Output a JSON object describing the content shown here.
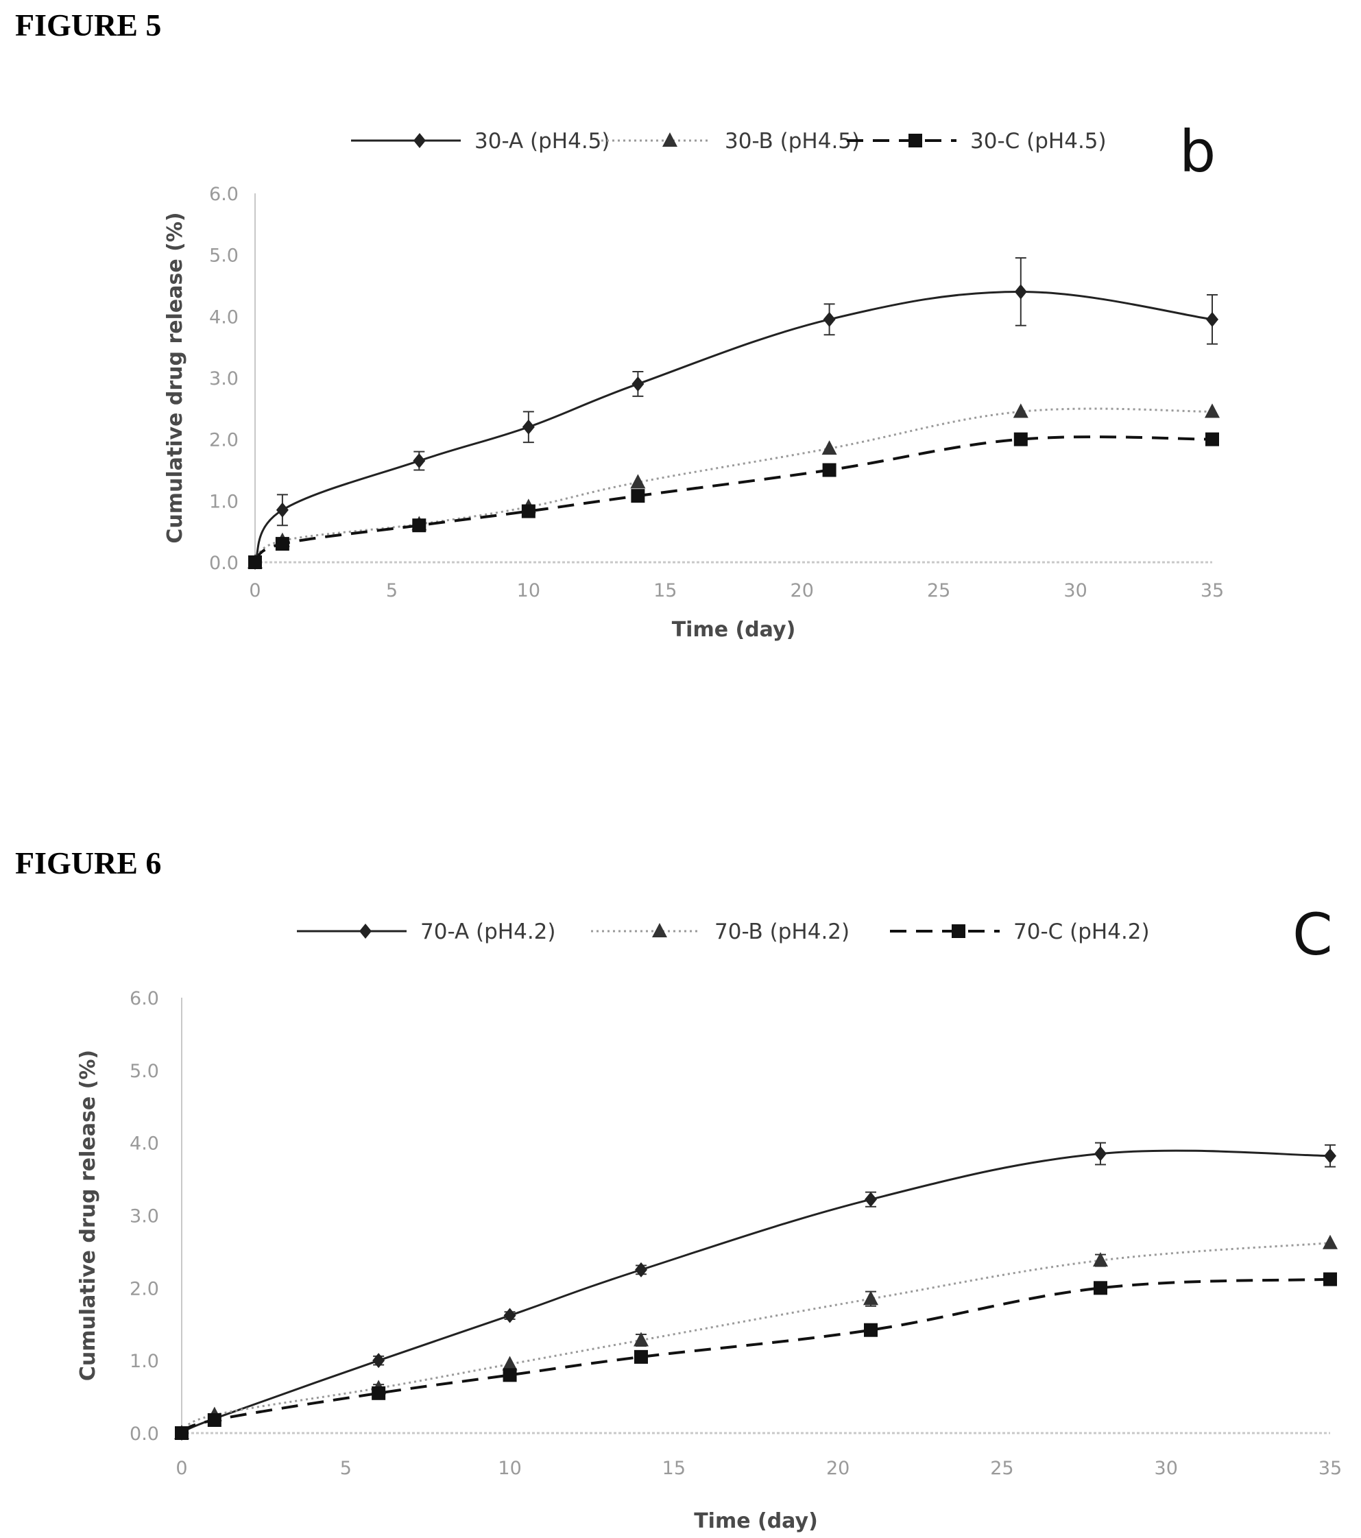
{
  "figures": [
    {
      "heading": "FIGURE 5"
    },
    {
      "heading": "FIGURE 6"
    }
  ],
  "chart_data": [
    {
      "type": "line",
      "panel_label": "b",
      "xlabel": "Time (day)",
      "ylabel": "Cumulative drug release (%)",
      "xlim": [
        0,
        35
      ],
      "ylim": [
        0,
        6
      ],
      "xticks": [
        "0",
        "5",
        "10",
        "15",
        "20",
        "25",
        "30",
        "35"
      ],
      "yticks": [
        "0.0",
        "1.0",
        "2.0",
        "3.0",
        "4.0",
        "5.0",
        "6.0"
      ],
      "legend_position": "top",
      "grid": false,
      "x": [
        0,
        1,
        6,
        10,
        14,
        21,
        28,
        35
      ],
      "series": [
        {
          "name": "30-A (pH4.5)",
          "marker": "diamond",
          "line": "solid",
          "color": "#222222",
          "values": [
            0,
            0.85,
            1.65,
            2.2,
            2.9,
            3.95,
            4.4,
            3.95
          ],
          "errors": [
            0,
            0.25,
            0.15,
            0.25,
            0.2,
            0.25,
            0.55,
            0.4
          ]
        },
        {
          "name": "30-B (pH4.5)",
          "marker": "triangle",
          "line": "dotted",
          "color": "#333333",
          "values": [
            0,
            0.35,
            0.62,
            0.9,
            1.3,
            1.85,
            2.45,
            2.45
          ],
          "errors": [
            0,
            0,
            0,
            0,
            0,
            0,
            0,
            0
          ]
        },
        {
          "name": "30-C (pH4.5)",
          "marker": "square",
          "line": "dashed",
          "color": "#111111",
          "values": [
            0,
            0.3,
            0.6,
            0.83,
            1.08,
            1.5,
            2.0,
            2.0
          ],
          "errors": [
            0,
            0,
            0,
            0,
            0,
            0,
            0,
            0
          ]
        }
      ]
    },
    {
      "type": "line",
      "panel_label": "C",
      "xlabel": "Time (day)",
      "ylabel": "Cumulative drug release (%)",
      "xlim": [
        0,
        35
      ],
      "ylim": [
        0,
        6
      ],
      "xticks": [
        "0",
        "5",
        "10",
        "15",
        "20",
        "25",
        "30",
        "35"
      ],
      "yticks": [
        "0.0",
        "1.0",
        "2.0",
        "3.0",
        "4.0",
        "5.0",
        "6.0"
      ],
      "legend_position": "top",
      "grid": false,
      "x": [
        0,
        1,
        6,
        10,
        14,
        21,
        28,
        35
      ],
      "series": [
        {
          "name": "70-A (pH4.2)",
          "marker": "diamond",
          "line": "solid",
          "color": "#222222",
          "values": [
            0,
            0.2,
            1.0,
            1.62,
            2.25,
            3.22,
            3.85,
            3.82
          ],
          "errors": [
            0,
            0.06,
            0.06,
            0.05,
            0.06,
            0.1,
            0.15,
            0.15
          ]
        },
        {
          "name": "70-B (pH4.2)",
          "marker": "triangle",
          "line": "dotted",
          "color": "#333333",
          "values": [
            0,
            0.25,
            0.62,
            0.95,
            1.28,
            1.85,
            2.38,
            2.62
          ],
          "errors": [
            0,
            0,
            0.05,
            0,
            0.08,
            0.1,
            0.08,
            0
          ]
        },
        {
          "name": "70-C (pH4.2)",
          "marker": "square",
          "line": "dashed",
          "color": "#111111",
          "values": [
            0,
            0.18,
            0.55,
            0.8,
            1.05,
            1.42,
            2.0,
            2.12
          ],
          "errors": [
            0,
            0,
            0,
            0,
            0,
            0,
            0,
            0
          ]
        }
      ]
    }
  ]
}
